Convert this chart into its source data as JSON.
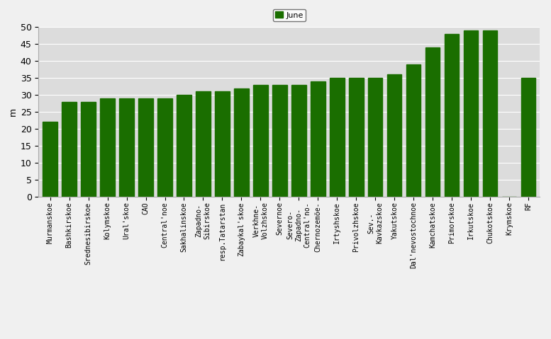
{
  "categories": [
    "Murmanskoe",
    "Bashkirskoe",
    "Srednesibirskoe",
    "Kolymskoe",
    "Ural'skoe",
    "CAO",
    "Central'noe",
    "Sakhalinskoe",
    "Zapadno-\nSibirskoe",
    "resp.Tatarstan",
    "Zabaykal'skoe",
    "Verkhne-\nVolzhskoe",
    "Severnoe",
    "Severo-\nZapadno-\nCentral'no-",
    "Chernozemöe-",
    "Irtyshskoe",
    "Privolzhskoe",
    "Sev.-\nKavkazskoe",
    "Yakutskoe",
    "Dal'nevostochnoe",
    "Kamchatskoe",
    "Primorskoe",
    "Irkutskoe",
    "Chukotskoe",
    "Krymskoe",
    "RF"
  ],
  "values": [
    22,
    28,
    28,
    29,
    29,
    29,
    29,
    30,
    31,
    31,
    32,
    33,
    33,
    33,
    34,
    35,
    35,
    35,
    36,
    39,
    44,
    48,
    49,
    49,
    0,
    35
  ],
  "bar_color": "#1a6e00",
  "ylabel": "m",
  "ylim": [
    0,
    50
  ],
  "yticks": [
    0,
    5,
    10,
    15,
    20,
    25,
    30,
    35,
    40,
    45,
    50
  ],
  "legend_label": "June",
  "legend_color": "#1a6e00",
  "plot_bg_color": "#dcdcdc",
  "fig_bg_color": "#f0f0f0",
  "tick_fontsize": 7,
  "ylabel_fontsize": 9
}
